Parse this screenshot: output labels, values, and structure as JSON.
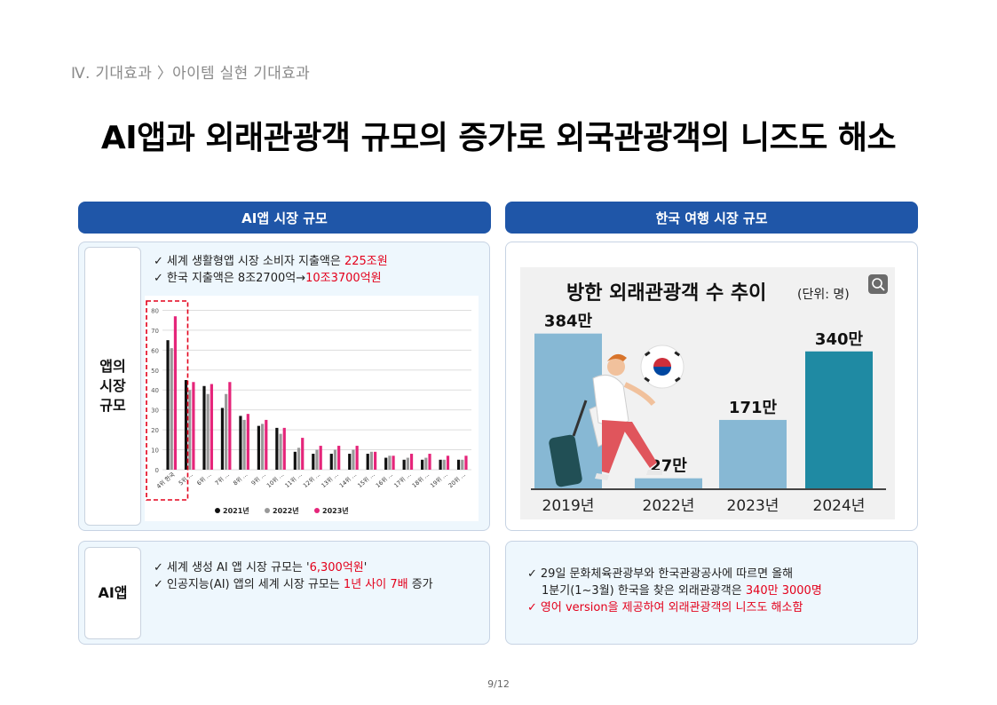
{
  "breadcrumb": "Ⅳ. 기대효과 〉아이템 실현 기대효과",
  "title": "AI앱과 외래관광객 규모의 증가로 외국관광객의 니즈도 해소",
  "left_header": "AI앱 시장 규모",
  "right_header": "한국 여행 시장 규모",
  "market_label": "앱의 시장 규모",
  "market_label_lines": [
    "앱의",
    "시장",
    "규모"
  ],
  "market_bullets": [
    {
      "check": "✓",
      "pre": "세계 생활형앱 시장 소비자 지출액은 ",
      "hl": "225조원",
      "post": ""
    },
    {
      "check": "✓",
      "pre": "한국 지출액은 8조2700억→",
      "hl": "10조3700억원",
      "post": ""
    }
  ],
  "ai_label": "AI앱",
  "ai_bullets": [
    {
      "check": "✓",
      "pre": "세계 생성 AI 앱 시장 규모는 '",
      "hl": "6,300억원",
      "post": "'"
    },
    {
      "check": "✓",
      "pre": "인공지능(AI) 앱의 세계 시장 규모는 ",
      "hl": "1년 사이 7배",
      "post": " 증가"
    }
  ],
  "tour_bullets": [
    {
      "check": "✓",
      "pre": "29일 문화체육관광부와 한국관광공사에 따르면 올해",
      "hl": "",
      "post": "",
      "red": false
    },
    {
      "check": "",
      "pre": "1분기(1~3월) 한국을 찾은 외래관광객은 ",
      "hl": "340만 3000명",
      "post": "",
      "red": false
    },
    {
      "check": "✓",
      "pre": "영어 version을 제공하여 외래관광객의 니즈도 해소함",
      "hl": "",
      "post": "",
      "red": true
    }
  ],
  "page_number": "9/12",
  "colors": {
    "header": "#1f56a8",
    "highlight": "#e3001b",
    "bar_light": "#87b8d4",
    "bar_dark": "#1f8aa3"
  },
  "chart_data": [
    {
      "type": "bar",
      "title": "",
      "categories": [
        "4위 한국",
        "5위 ...",
        "6위 ...",
        "7위 ...",
        "8위 ...",
        "9위 ...",
        "10위 ...",
        "11위 ...",
        "12위 ...",
        "13위 ...",
        "14위 ...",
        "15위 ...",
        "16위 ...",
        "17위 ...",
        "18위 ...",
        "19위 ...",
        "20위 ..."
      ],
      "series": [
        {
          "name": "2021년",
          "values": [
            65,
            45,
            42,
            31,
            27,
            22,
            21,
            9,
            8,
            8,
            8,
            8,
            6,
            5,
            5,
            5,
            5
          ]
        },
        {
          "name": "2022년",
          "values": [
            61,
            40,
            38,
            38,
            25,
            23,
            18,
            11,
            10,
            10,
            10,
            9,
            7,
            6,
            6,
            5,
            5
          ]
        },
        {
          "name": "2023년",
          "values": [
            77,
            44,
            43,
            44,
            28,
            25,
            21,
            16,
            12,
            12,
            12,
            9,
            7,
            8,
            8,
            7,
            7
          ]
        }
      ],
      "series_colors": [
        "#111111",
        "#999999",
        "#e5257a"
      ],
      "yticks": [
        "0",
        "10",
        "20",
        "30",
        "40",
        "50",
        "60",
        "70",
        "80"
      ],
      "ylim": [
        0,
        82
      ],
      "legend": "bottom"
    },
    {
      "type": "bar",
      "title": "방한 외래관광객 수 추이",
      "unit": "(단위: 명)",
      "categories": [
        "2019년",
        "2022년",
        "2023년",
        "2024년"
      ],
      "values": [
        3840000,
        270000,
        1710000,
        3400000
      ],
      "labels": [
        "384만",
        "27만",
        "171만",
        "340만"
      ],
      "colors": [
        "#87b8d4",
        "#87b8d4",
        "#87b8d4",
        "#1f8aa3"
      ],
      "ylim": [
        0,
        4200000
      ]
    }
  ]
}
